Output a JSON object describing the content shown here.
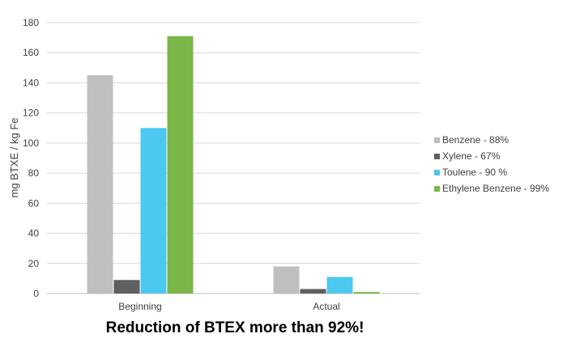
{
  "chart_data": {
    "type": "bar",
    "title": "",
    "xlabel": "",
    "ylabel": "mg BTXE / kg Fe",
    "ylim": [
      0,
      180
    ],
    "yticks": [
      0,
      20,
      40,
      60,
      80,
      100,
      120,
      140,
      160,
      180
    ],
    "grid": "horizontal",
    "legend_position": "right",
    "categories": [
      "Beginning",
      "Actual"
    ],
    "series": [
      {
        "name": "Benzene - 88%",
        "color": "#bfbfbf",
        "values": [
          145,
          18
        ]
      },
      {
        "name": "Xylene - 67%",
        "color": "#5f5f5f",
        "values": [
          9,
          3
        ]
      },
      {
        "name": "Toulene - 90 %",
        "color": "#4dc8f0",
        "values": [
          110,
          11
        ]
      },
      {
        "name": "Ethylene Benzene - 99%",
        "color": "#7ab648",
        "values": [
          171,
          1
        ]
      }
    ]
  },
  "caption": "Reduction of BTEX more than 92%!",
  "colors": {
    "grid": "#d9d9d9",
    "axis": "#bfbfbf",
    "text": "#404040"
  }
}
